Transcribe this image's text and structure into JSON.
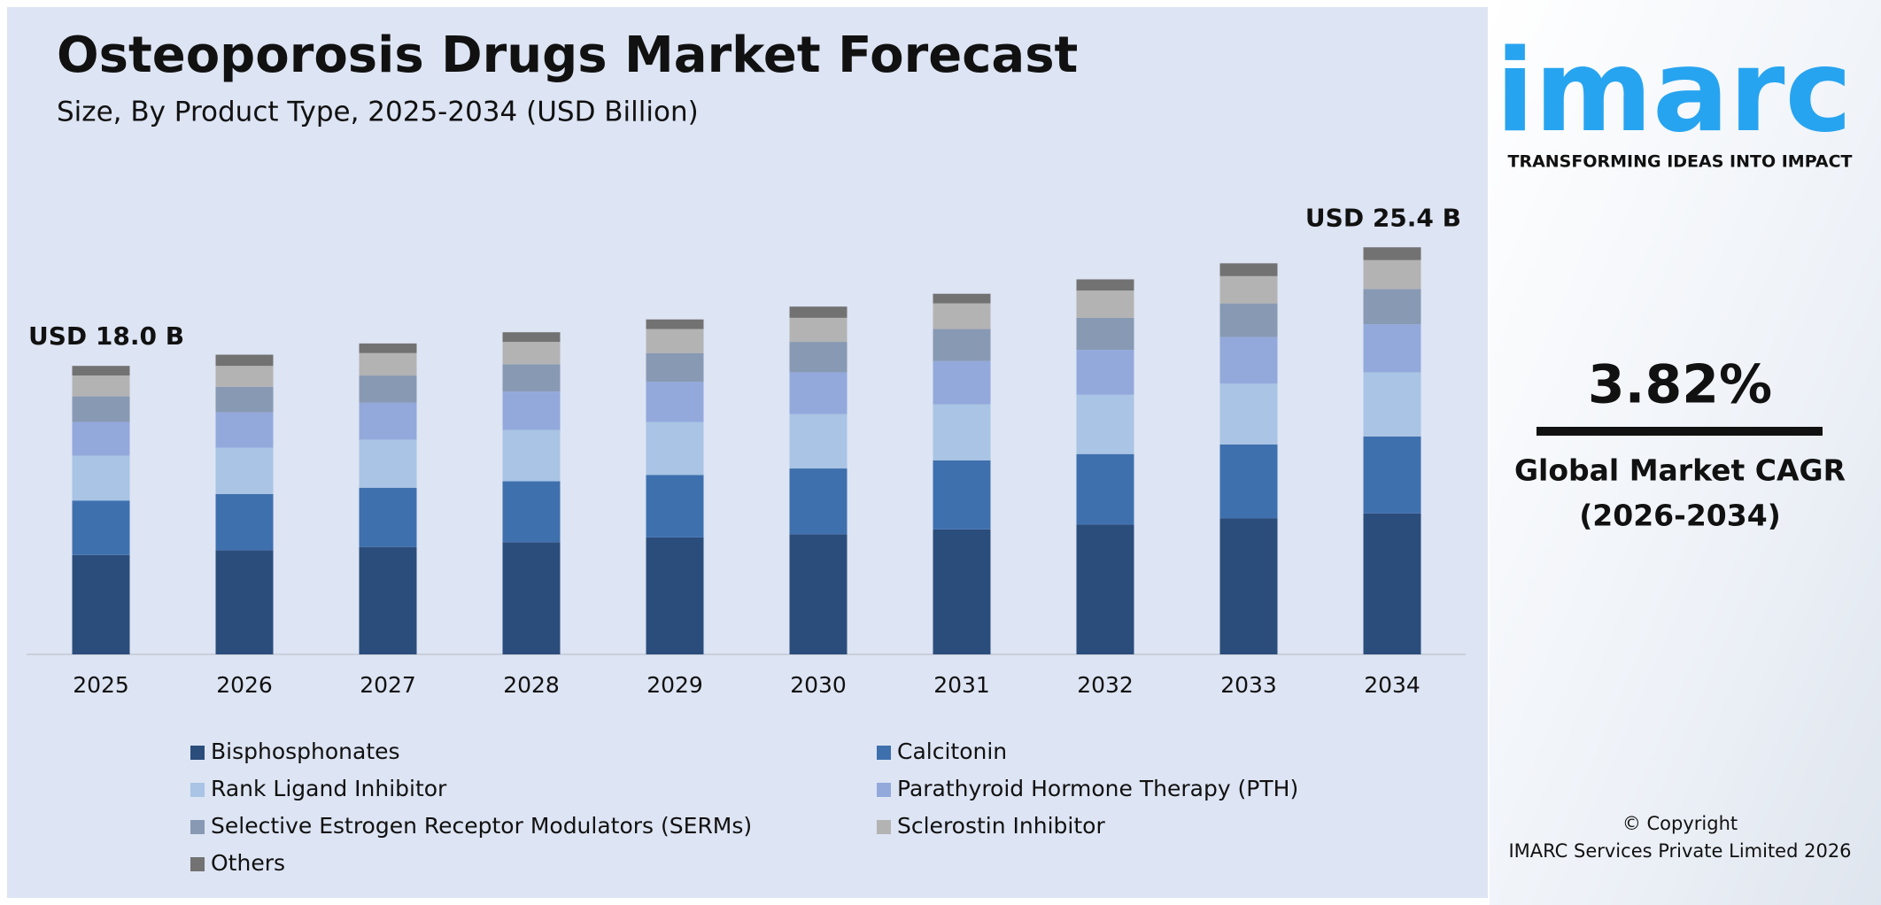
{
  "chart_data": {
    "type": "stacked-bar",
    "title": "Osteoporosis Drugs Market Forecast",
    "subtitle": "Size, By Product Type, 2025-2034 (USD Billion)",
    "categories": [
      "2025",
      "2026",
      "2027",
      "2028",
      "2029",
      "2030",
      "2031",
      "2032",
      "2033",
      "2034"
    ],
    "series": [
      {
        "name": "Bisphosphonates",
        "color": "#2b4d7b",
        "values": [
          6.2,
          6.5,
          6.7,
          7.0,
          7.3,
          7.5,
          7.8,
          8.1,
          8.5,
          8.8
        ]
      },
      {
        "name": "Calcitonin",
        "color": "#3f70ae",
        "values": [
          3.4,
          3.5,
          3.7,
          3.8,
          3.9,
          4.1,
          4.3,
          4.4,
          4.6,
          4.8
        ]
      },
      {
        "name": "Rank Ligand Inhibitor",
        "color": "#a9c4e4",
        "values": [
          2.8,
          2.9,
          3.0,
          3.2,
          3.3,
          3.4,
          3.5,
          3.7,
          3.8,
          4.0
        ]
      },
      {
        "name": "Parathyroid Hormone Therapy (PTH)",
        "color": "#93a9dc",
        "values": [
          2.1,
          2.2,
          2.3,
          2.4,
          2.5,
          2.6,
          2.7,
          2.8,
          2.9,
          3.0
        ]
      },
      {
        "name": "Selective Estrogen Receptor Modulators (SERMs)",
        "color": "#8899b3",
        "values": [
          1.6,
          1.6,
          1.7,
          1.7,
          1.8,
          1.9,
          2.0,
          2.0,
          2.1,
          2.2
        ]
      },
      {
        "name": "Sclerostin Inhibitor",
        "color": "#b3b3b3",
        "values": [
          1.3,
          1.3,
          1.4,
          1.4,
          1.5,
          1.5,
          1.6,
          1.7,
          1.7,
          1.8
        ]
      },
      {
        "name": "Others",
        "color": "#727272",
        "values": [
          0.6,
          0.7,
          0.6,
          0.6,
          0.6,
          0.7,
          0.6,
          0.7,
          0.8,
          0.8
        ]
      }
    ],
    "total_labels": [
      {
        "value": 18.0,
        "label": "USD 18.0 B"
      },
      null,
      null,
      null,
      null,
      null,
      null,
      null,
      null,
      {
        "value": 25.4,
        "label": "USD 25.4 B"
      }
    ],
    "legend": "bottom"
  },
  "side_panel": {
    "logo": "imarc",
    "tagline": "TRANSFORMING IDEAS INTO IMPACT",
    "cagr": "3.82%",
    "cagr_label": [
      "Global Market CAGR",
      "(2026-2034)"
    ],
    "copyright": [
      "© Copyright",
      "IMARC Services Private Limited 2026"
    ]
  }
}
